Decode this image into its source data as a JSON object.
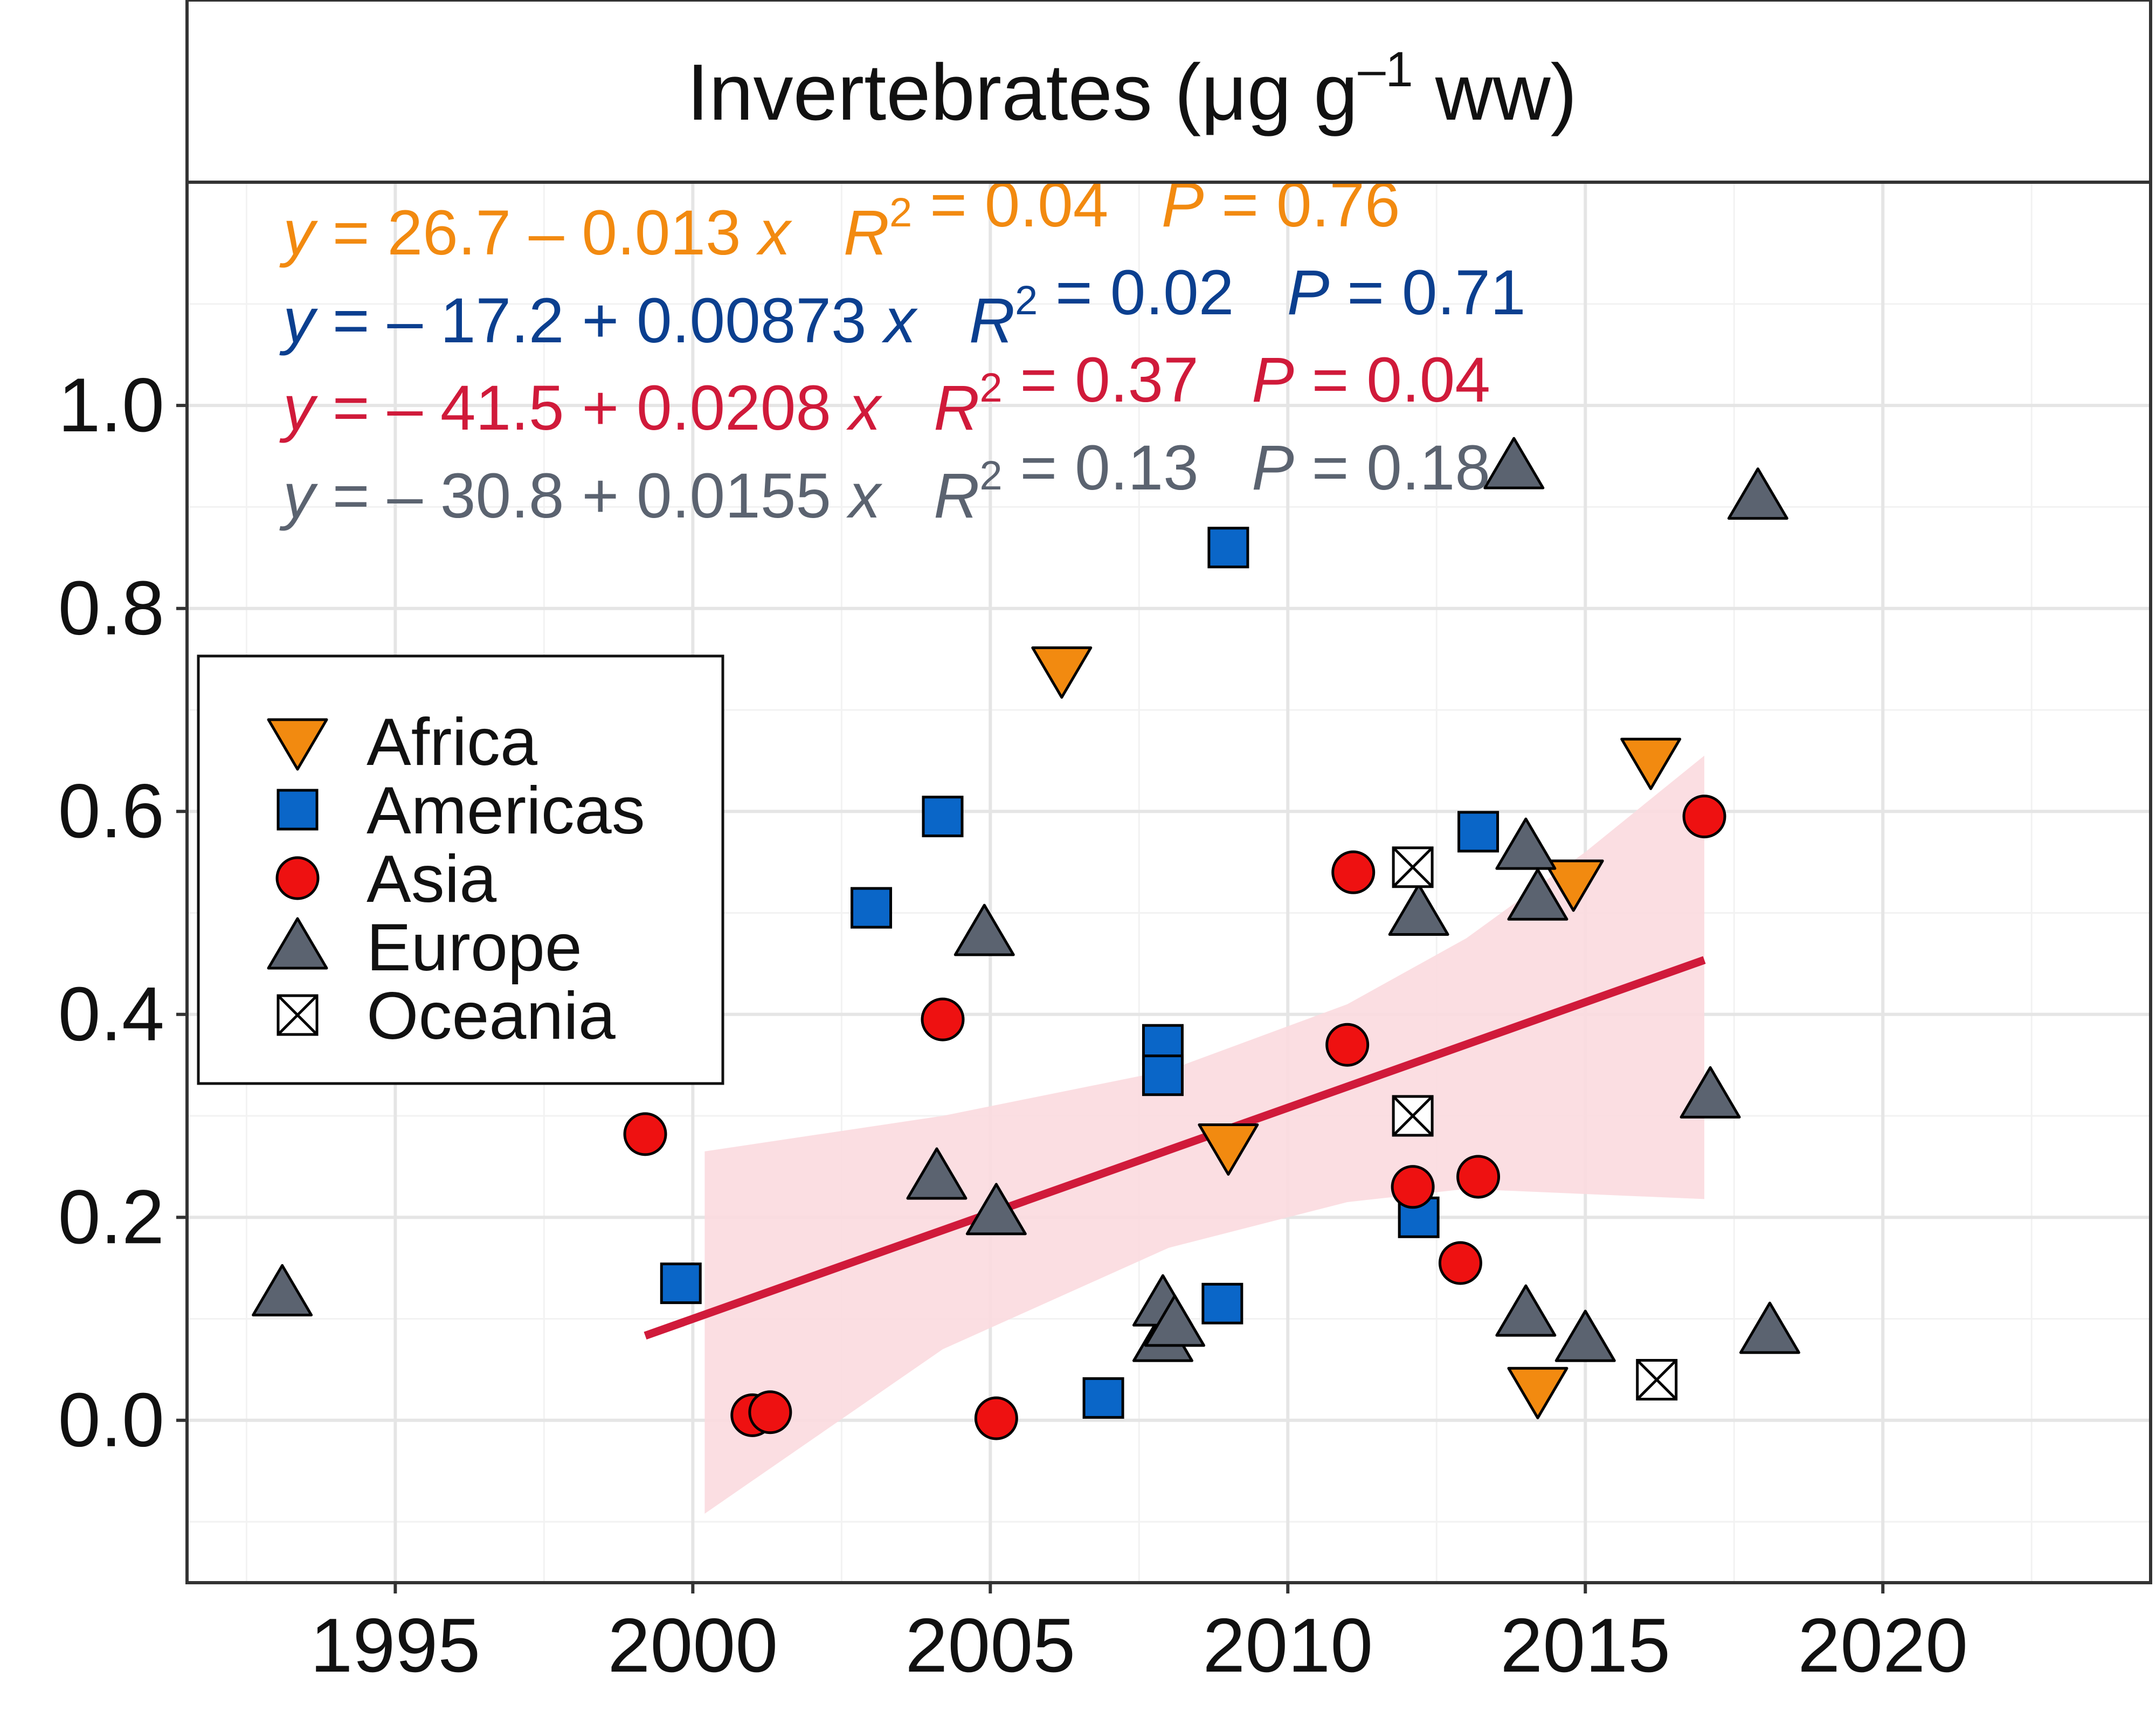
{
  "panel_title": {
    "prefix": "Invertebrates (",
    "mu": "μ",
    "mid": "g g",
    "sup": "–1",
    "suffix": " ww)"
  },
  "colors": {
    "Africa": "#f28a10",
    "Americas": "#0a66c8",
    "Asia": "#ee1111",
    "Europe": "#5b6370",
    "Oceania": "#ffffff",
    "eq_africa": "#f28a10",
    "eq_americas": "#0b3f8f",
    "eq_asia": "#d01a3a",
    "eq_europe": "#5b6370",
    "fit_line": "#d01a3a",
    "ribbon": "#fbdadf"
  },
  "equations": [
    {
      "key": "africa",
      "a": "26.7",
      "op": "–",
      "b": "0.013",
      "r2": "0.04",
      "p": "0.76",
      "sign_y": "",
      "color_key": "eq_africa"
    },
    {
      "key": "americas",
      "a": "17.2",
      "op": "+",
      "b": "0.00873",
      "r2": "0.02",
      "p": "0.71",
      "sign_y": "–",
      "color_key": "eq_americas"
    },
    {
      "key": "asia",
      "a": "41.5",
      "op": "+",
      "b": "0.0208",
      "r2": "0.37",
      "p": "0.04",
      "sign_y": "–",
      "color_key": "eq_asia"
    },
    {
      "key": "europe",
      "a": "30.8",
      "op": "+",
      "b": "0.0155",
      "r2": "0.13",
      "p": "0.18",
      "sign_y": "–",
      "color_key": "eq_europe"
    }
  ],
  "legend": [
    {
      "label": "Africa",
      "shape": "triangle-down"
    },
    {
      "label": "Americas",
      "shape": "square"
    },
    {
      "label": "Asia",
      "shape": "circle"
    },
    {
      "label": "Europe",
      "shape": "triangle-up"
    },
    {
      "label": "Oceania",
      "shape": "square-cross"
    }
  ],
  "chart_data": {
    "type": "scatter",
    "title": "Invertebrates (μg g–1 ww)",
    "xlabel": "",
    "ylabel": "",
    "xlim": [
      1991.5,
      2024.5
    ],
    "ylim": [
      -0.16,
      1.22
    ],
    "xticks": [
      1995,
      2000,
      2005,
      2010,
      2015,
      2020
    ],
    "yticks": [
      0.0,
      0.2,
      0.4,
      0.6,
      0.8,
      1.0
    ],
    "ytick_labels": [
      "0.0",
      "0.2",
      "0.4",
      "0.6",
      "0.8",
      "1.0"
    ],
    "grid": true,
    "legend_position": "left",
    "series": [
      {
        "name": "Africa",
        "shape": "triangle-down",
        "points": [
          [
            2006.2,
            0.74
          ],
          [
            2009.0,
            0.27
          ],
          [
            2014.2,
            0.03
          ],
          [
            2014.8,
            0.53
          ],
          [
            2016.1,
            0.65
          ]
        ]
      },
      {
        "name": "Americas",
        "shape": "square",
        "points": [
          [
            1999.8,
            0.135
          ],
          [
            2003.0,
            0.505
          ],
          [
            2004.2,
            0.595
          ],
          [
            2006.9,
            0.022
          ],
          [
            2007.9,
            0.37
          ],
          [
            2007.9,
            0.34
          ],
          [
            2008.9,
            0.115
          ],
          [
            2009.0,
            0.86
          ],
          [
            2012.2,
            0.2
          ],
          [
            2013.2,
            0.58
          ]
        ]
      },
      {
        "name": "Asia",
        "shape": "circle",
        "points": [
          [
            1999.2,
            0.282
          ],
          [
            2001.0,
            0.005
          ],
          [
            2001.3,
            0.008
          ],
          [
            2004.2,
            0.395
          ],
          [
            2005.1,
            0.002
          ],
          [
            2011.0,
            0.37
          ],
          [
            2011.1,
            0.54
          ],
          [
            2012.1,
            0.23
          ],
          [
            2012.9,
            0.155
          ],
          [
            2013.2,
            0.24
          ],
          [
            2017.0,
            0.595
          ]
        ]
      },
      {
        "name": "Europe",
        "shape": "triangle-up",
        "points": [
          [
            1993.1,
            0.125
          ],
          [
            2004.1,
            0.24
          ],
          [
            2004.9,
            0.48
          ],
          [
            2005.1,
            0.205
          ],
          [
            2007.9,
            0.08
          ],
          [
            2007.9,
            0.115
          ],
          [
            2008.1,
            0.095
          ],
          [
            2012.2,
            0.5
          ],
          [
            2013.8,
            0.94
          ],
          [
            2014.0,
            0.565
          ],
          [
            2014.0,
            0.105
          ],
          [
            2014.2,
            0.515
          ],
          [
            2015.0,
            0.08
          ],
          [
            2017.1,
            0.32
          ],
          [
            2017.9,
            0.91
          ],
          [
            2018.1,
            0.088
          ]
        ]
      },
      {
        "name": "Oceania",
        "shape": "square-cross",
        "points": [
          [
            2012.1,
            0.545
          ],
          [
            2012.1,
            0.3
          ],
          [
            2016.2,
            0.04
          ]
        ]
      }
    ],
    "fit": {
      "series": "Asia",
      "intercept": -41.5,
      "slope": 0.0208,
      "x_range": [
        1999.2,
        2017.0
      ]
    },
    "ribbon": {
      "upper": [
        [
          2000.2,
          0.265
        ],
        [
          2004.2,
          0.3
        ],
        [
          2008.0,
          0.345
        ],
        [
          2011.0,
          0.41
        ],
        [
          2013.0,
          0.475
        ],
        [
          2015.0,
          0.56
        ],
        [
          2017.0,
          0.655
        ]
      ],
      "lower": [
        [
          2000.2,
          -0.092
        ],
        [
          2004.2,
          0.07
        ],
        [
          2008.0,
          0.17
        ],
        [
          2011.0,
          0.215
        ],
        [
          2013.0,
          0.228
        ],
        [
          2015.0,
          0.223
        ],
        [
          2017.0,
          0.218
        ]
      ]
    }
  }
}
